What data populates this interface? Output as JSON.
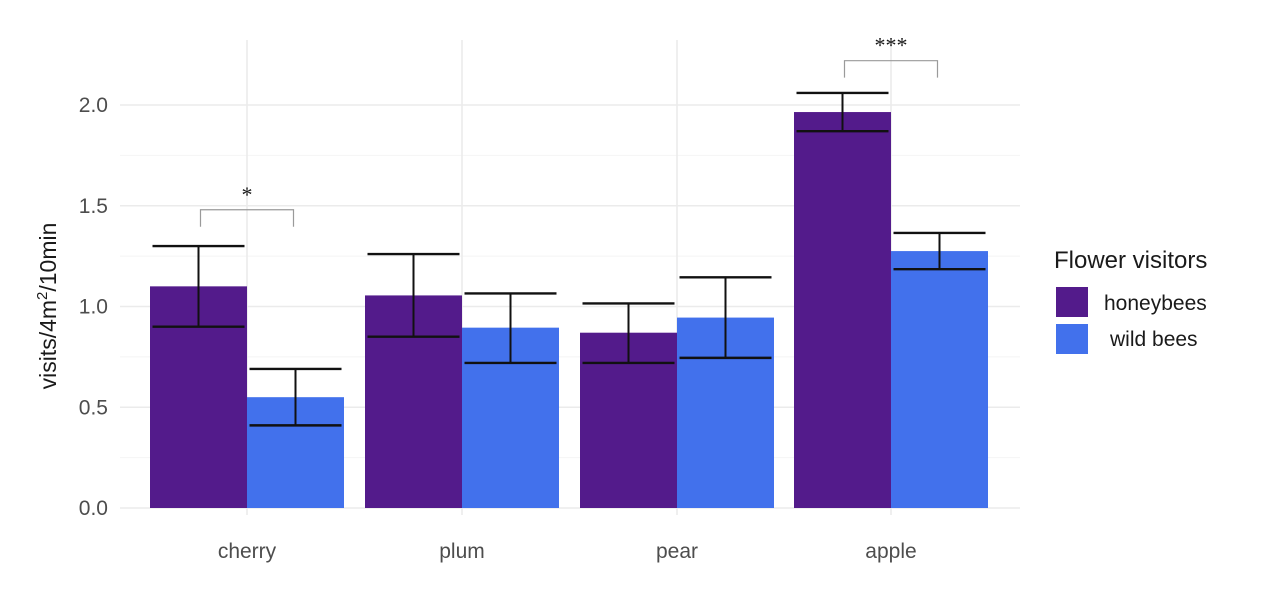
{
  "chart_data": {
    "type": "bar",
    "categories": [
      "cherry",
      "plum",
      "pear",
      "apple"
    ],
    "series": [
      {
        "name": "honeybees",
        "color": "#531b8b",
        "values": [
          1.1,
          1.055,
          0.87,
          1.965
        ],
        "error_low": [
          0.9,
          0.85,
          0.72,
          1.87
        ],
        "error_high": [
          1.3,
          1.26,
          1.015,
          2.06
        ]
      },
      {
        "name": "wild bees",
        "color": "#4271ec",
        "values": [
          0.55,
          0.895,
          0.945,
          1.275
        ],
        "error_low": [
          0.41,
          0.72,
          0.745,
          1.185
        ],
        "error_high": [
          0.69,
          1.065,
          1.145,
          1.365
        ]
      }
    ],
    "ylabel_parts": [
      "visits/4m",
      "2",
      "/10min"
    ],
    "yticks": [
      "0.0",
      "0.5",
      "1.0",
      "1.5",
      "2.0"
    ],
    "ylim": [
      0,
      2.2
    ],
    "grid": true,
    "legend": {
      "title": "Flower visitors",
      "position": "right",
      "items": [
        "honeybees",
        "wild bees"
      ]
    },
    "annotations": [
      {
        "category": "cherry",
        "label": "*",
        "y": 1.48
      },
      {
        "category": "apple",
        "label": "***",
        "y": 2.22
      }
    ]
  }
}
